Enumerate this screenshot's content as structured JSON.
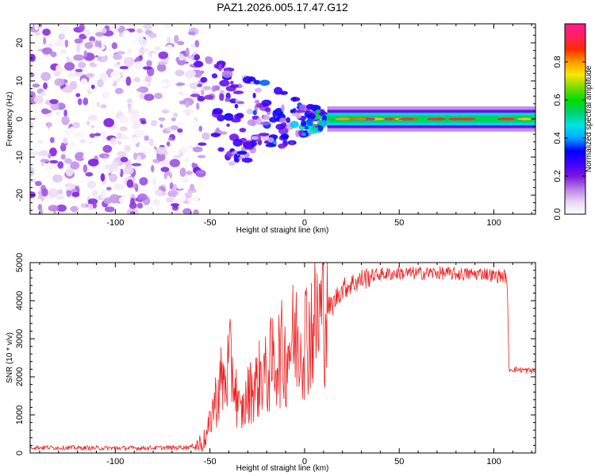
{
  "chart_data": [
    {
      "type": "heatmap",
      "title": "PAZ1.2026.005.17.47.G12",
      "xlabel": "Height of straight line (km)",
      "ylabel": "Frequency (Hz)",
      "xlim": [
        -145,
        122
      ],
      "ylim": [
        -25,
        25
      ],
      "xticks": [
        -100,
        -50,
        0,
        50,
        100
      ],
      "yticks": [
        -20,
        -10,
        0,
        10,
        20
      ],
      "noise_region_x": [
        -145,
        -58
      ],
      "transition_region_x": [
        -58,
        12
      ],
      "signal_band_x": [
        12,
        122
      ],
      "signal_center_hz": 0,
      "signal_halfwidth_hz": 1.5,
      "colorbar": {
        "label": "Normalized spectral amplitude",
        "range": [
          0.0,
          1.0
        ],
        "ticks": [
          0.0,
          0.2,
          0.4,
          0.6,
          0.8
        ],
        "tick_labels": [
          "0.0",
          "0.2",
          "0.4",
          "0.6",
          "0.8"
        ],
        "colors": [
          "#ffffff",
          "#e7d3f3",
          "#b57ee6",
          "#7a16e0",
          "#3d00ff",
          "#0000ff",
          "#00a8ff",
          "#00e5e5",
          "#00d070",
          "#00dd00",
          "#7cdc00",
          "#ffe600",
          "#ff9a00",
          "#ff2a00",
          "#ff2060",
          "#ff1a8a"
        ]
      }
    },
    {
      "type": "line",
      "xlabel": "Height of straight line (km)",
      "ylabel": "SNR (10 * v/v)",
      "xlim": [
        -145,
        122
      ],
      "ylim": [
        0,
        5000
      ],
      "xticks": [
        -100,
        -50,
        0,
        50,
        100
      ],
      "yticks": [
        0,
        1000,
        2000,
        3000,
        4000,
        5000
      ],
      "line_color": "#ee2222",
      "series": [
        {
          "name": "SNR",
          "x": [
            -145,
            -130,
            -110,
            -90,
            -70,
            -60,
            -55,
            -52,
            -50,
            -48,
            -46,
            -44,
            -42,
            -40,
            -38,
            -36,
            -34,
            -32,
            -30,
            -28,
            -25,
            -22,
            -20,
            -18,
            -15,
            -12,
            -10,
            -8,
            -5,
            -2,
            0,
            2,
            5,
            8,
            10,
            12,
            15,
            18,
            20,
            25,
            30,
            35,
            40,
            45,
            50,
            60,
            70,
            80,
            90,
            95,
            100,
            105,
            107,
            108,
            110,
            115,
            122
          ],
          "values": [
            150,
            140,
            130,
            130,
            140,
            160,
            250,
            400,
            800,
            1300,
            1500,
            1900,
            1800,
            2300,
            2200,
            1500,
            1000,
            1200,
            1500,
            1700,
            1800,
            2200,
            1900,
            2300,
            2500,
            2600,
            2500,
            2900,
            3000,
            3000,
            3100,
            3200,
            3400,
            3600,
            3800,
            3800,
            3900,
            4200,
            4300,
            4450,
            4550,
            4650,
            4700,
            4700,
            4720,
            4720,
            4730,
            4700,
            4700,
            4720,
            4650,
            4650,
            4600,
            2200,
            2200,
            2180,
            2150
          ]
        }
      ]
    }
  ]
}
